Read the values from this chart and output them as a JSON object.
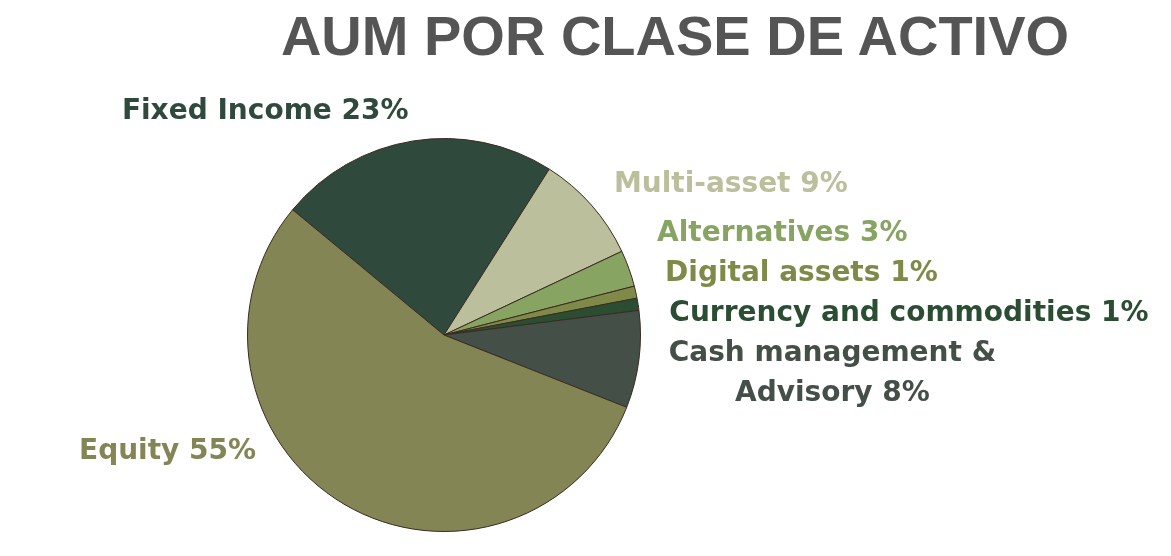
{
  "chart_data": {
    "type": "pie",
    "title": "AUM POR CLASE DE ACTIVO",
    "categories": [
      "Fixed Income",
      "Multi-asset",
      "Alternatives",
      "Digital assets",
      "Currency and commodities",
      "Cash management &\nAdvisory",
      "Equity"
    ],
    "values": [
      23,
      9,
      3,
      1,
      1,
      8,
      55
    ],
    "colors": [
      "#2f4a3c",
      "#bcbf9b",
      "#87a463",
      "#7f8a48",
      "#2b4e33",
      "#444f48",
      "#838555"
    ],
    "value_labels": [
      "23%",
      "9%",
      "3%",
      "1%",
      "1%",
      "8%",
      "55%"
    ]
  }
}
